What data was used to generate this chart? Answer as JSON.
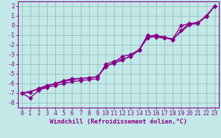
{
  "xlabel": "Windchill (Refroidissement éolien,°C)",
  "bg_color": "#c2e8e8",
  "line_color": "#880088",
  "grid_color": "#99bbbb",
  "xlim": [
    -0.5,
    23.5
  ],
  "ylim": [
    -8.5,
    2.5
  ],
  "xticks": [
    0,
    1,
    2,
    3,
    4,
    5,
    6,
    7,
    8,
    9,
    10,
    11,
    12,
    13,
    14,
    15,
    16,
    17,
    18,
    19,
    20,
    21,
    22,
    23
  ],
  "yticks": [
    -8,
    -7,
    -6,
    -5,
    -4,
    -3,
    -2,
    -1,
    0,
    1,
    2
  ],
  "line1_x": [
    0,
    1,
    2,
    3,
    4,
    5,
    6,
    7,
    8,
    9,
    10,
    11,
    12,
    13,
    14,
    15,
    16,
    17,
    18,
    19,
    20,
    21,
    22,
    23
  ],
  "line1_y": [
    -7.0,
    -6.9,
    -6.5,
    -6.2,
    -6.0,
    -5.8,
    -5.6,
    -5.5,
    -5.4,
    -5.3,
    -4.3,
    -3.8,
    -3.2,
    -3.0,
    -2.5,
    -1.0,
    -1.2,
    -1.3,
    -1.4,
    0.0,
    0.2,
    0.3,
    1.0,
    2.0
  ],
  "line2_x": [
    0,
    1,
    2,
    3,
    4,
    5,
    6,
    7,
    8,
    9,
    10,
    11,
    12,
    13,
    14,
    15,
    16,
    17,
    18,
    19,
    20,
    21,
    22,
    23
  ],
  "line2_y": [
    -7.0,
    -7.5,
    -6.7,
    -6.4,
    -6.2,
    -6.0,
    -5.8,
    -5.7,
    -5.6,
    -5.5,
    -4.0,
    -3.7,
    -3.5,
    -3.2,
    -2.5,
    -1.3,
    -1.1,
    -1.2,
    -1.5,
    -0.5,
    0.2,
    0.3,
    0.9,
    2.0
  ],
  "line3_x": [
    0,
    2,
    3,
    4,
    5,
    6,
    7,
    8,
    9,
    10,
    11,
    12,
    13,
    14,
    15,
    16,
    17,
    18,
    20,
    21,
    22,
    23
  ],
  "line3_y": [
    -7.0,
    -6.6,
    -6.3,
    -6.0,
    -5.7,
    -5.5,
    -5.5,
    -5.4,
    -5.3,
    -4.2,
    -3.9,
    -3.6,
    -3.1,
    -2.6,
    -1.1,
    -1.0,
    -1.2,
    -1.4,
    0.1,
    0.2,
    1.0,
    2.0
  ],
  "xlabel_fontsize": 6.5,
  "tick_fontsize": 6.0,
  "line_width": 1.0,
  "marker_size": 2.5
}
